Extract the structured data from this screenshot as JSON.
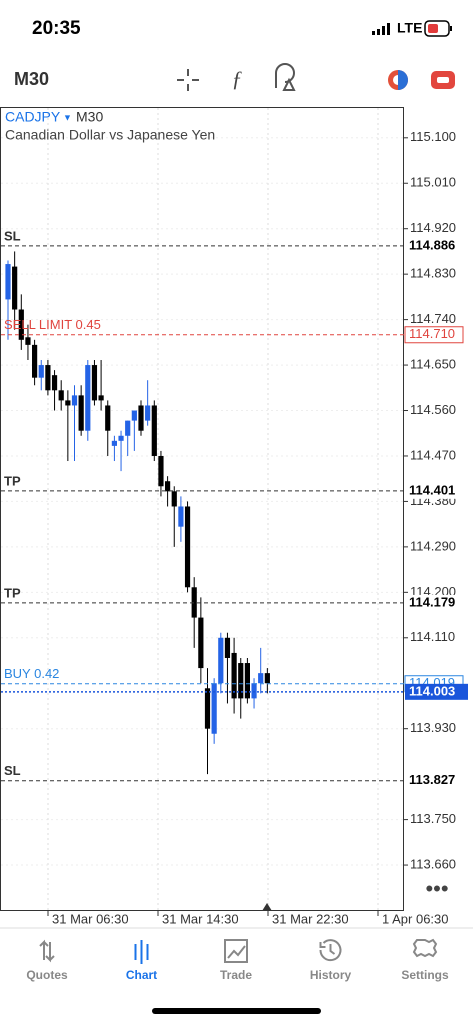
{
  "status_bar": {
    "time": "20:35",
    "network": "LTE"
  },
  "toolbar": {
    "timeframe": "M30"
  },
  "chart_data": {
    "type": "candlestick",
    "symbol": "CADJPY",
    "timeframe": "M30",
    "description": "Canadian Dollar vs Japanese Yen",
    "open": [
      114.78,
      114.845,
      114.76,
      114.705,
      114.69,
      114.625,
      114.65,
      114.63,
      114.6,
      114.58,
      114.57,
      114.59,
      114.52,
      114.65,
      114.59,
      114.57,
      114.49,
      114.5,
      114.51,
      114.54,
      114.57,
      114.54,
      114.57,
      114.47,
      114.42,
      114.4,
      114.33,
      114.37,
      114.21,
      114.15,
      114.01,
      113.92,
      114.02,
      114.11,
      114.08,
      114.06,
      114.06,
      113.99,
      114.02,
      114.04
    ],
    "high": [
      114.857,
      114.875,
      114.79,
      114.73,
      114.7,
      114.66,
      114.66,
      114.64,
      114.62,
      114.6,
      114.61,
      114.61,
      114.66,
      114.66,
      114.66,
      114.58,
      114.51,
      114.52,
      114.54,
      114.56,
      114.58,
      114.62,
      114.58,
      114.48,
      114.43,
      114.41,
      114.39,
      114.38,
      114.23,
      114.19,
      114.05,
      114.03,
      114.12,
      114.12,
      114.11,
      114.07,
      114.07,
      114.03,
      114.09,
      114.05
    ],
    "low": [
      114.7,
      114.72,
      114.68,
      114.66,
      114.61,
      114.6,
      114.59,
      114.56,
      114.56,
      114.46,
      114.46,
      114.51,
      114.5,
      114.57,
      114.56,
      114.47,
      114.46,
      114.44,
      114.47,
      114.48,
      114.51,
      114.53,
      114.46,
      114.39,
      114.37,
      114.29,
      114.3,
      114.2,
      114.09,
      114.02,
      113.84,
      113.9,
      114.0,
      113.98,
      113.96,
      113.95,
      113.98,
      113.97,
      114.0,
      114.0
    ],
    "close": [
      114.85,
      114.76,
      114.7,
      114.69,
      114.625,
      114.65,
      114.6,
      114.6,
      114.58,
      114.57,
      114.59,
      114.52,
      114.65,
      114.58,
      114.58,
      114.52,
      114.5,
      114.51,
      114.54,
      114.56,
      114.52,
      114.57,
      114.47,
      114.41,
      114.4,
      114.37,
      114.37,
      114.21,
      114.15,
      114.05,
      113.93,
      114.02,
      114.11,
      114.07,
      113.99,
      113.99,
      113.99,
      114.02,
      114.04,
      114.02
    ],
    "up_color": "#2463e6",
    "down_color": "#000000",
    "ylim": [
      113.571,
      115.159
    ],
    "yticks": [
      {
        "value": 115.1,
        "label": "115.100"
      },
      {
        "value": 115.01,
        "label": "115.010"
      },
      {
        "value": 114.92,
        "label": "114.920"
      },
      {
        "value": 114.83,
        "label": "114.830"
      },
      {
        "value": 114.74,
        "label": "114.740"
      },
      {
        "value": 114.65,
        "label": "114.650"
      },
      {
        "value": 114.56,
        "label": "114.560"
      },
      {
        "value": 114.47,
        "label": "114.470"
      },
      {
        "value": 114.38,
        "label": "114.380"
      },
      {
        "value": 114.29,
        "label": "114.290"
      },
      {
        "value": 114.2,
        "label": "114.200"
      },
      {
        "value": 114.11,
        "label": "114.110"
      },
      {
        "value": 113.93,
        "label": "113.930"
      },
      {
        "value": 113.75,
        "label": "113.750"
      },
      {
        "value": 113.66,
        "label": "113.660"
      }
    ],
    "xticks": [
      "31 Mar 06:30",
      "31 Mar 14:30",
      "31 Mar 22:30",
      "1 Apr 06:30"
    ],
    "grid": true,
    "levels": [
      {
        "name": "SL",
        "price": 114.886
      },
      {
        "name": "SELL LIMIT 0.45",
        "price": {
          "value": 114.71,
          "label": "114.710"
        },
        "color": "#e0443e"
      },
      {
        "name": "TP",
        "price": 114.401
      },
      {
        "name": "TP",
        "price": 114.179
      },
      {
        "name": "BUY 0.42",
        "price": 114.019,
        "color": "#2b86e0"
      },
      {
        "name": "SL",
        "price": 113.827
      }
    ],
    "bid": {
      "price": 114.003,
      "color": "#1a56db"
    }
  },
  "tabs": [
    {
      "label": "Quotes"
    },
    {
      "label": "Chart",
      "active": true
    },
    {
      "label": "Trade"
    },
    {
      "label": "History"
    },
    {
      "label": "Settings"
    }
  ]
}
